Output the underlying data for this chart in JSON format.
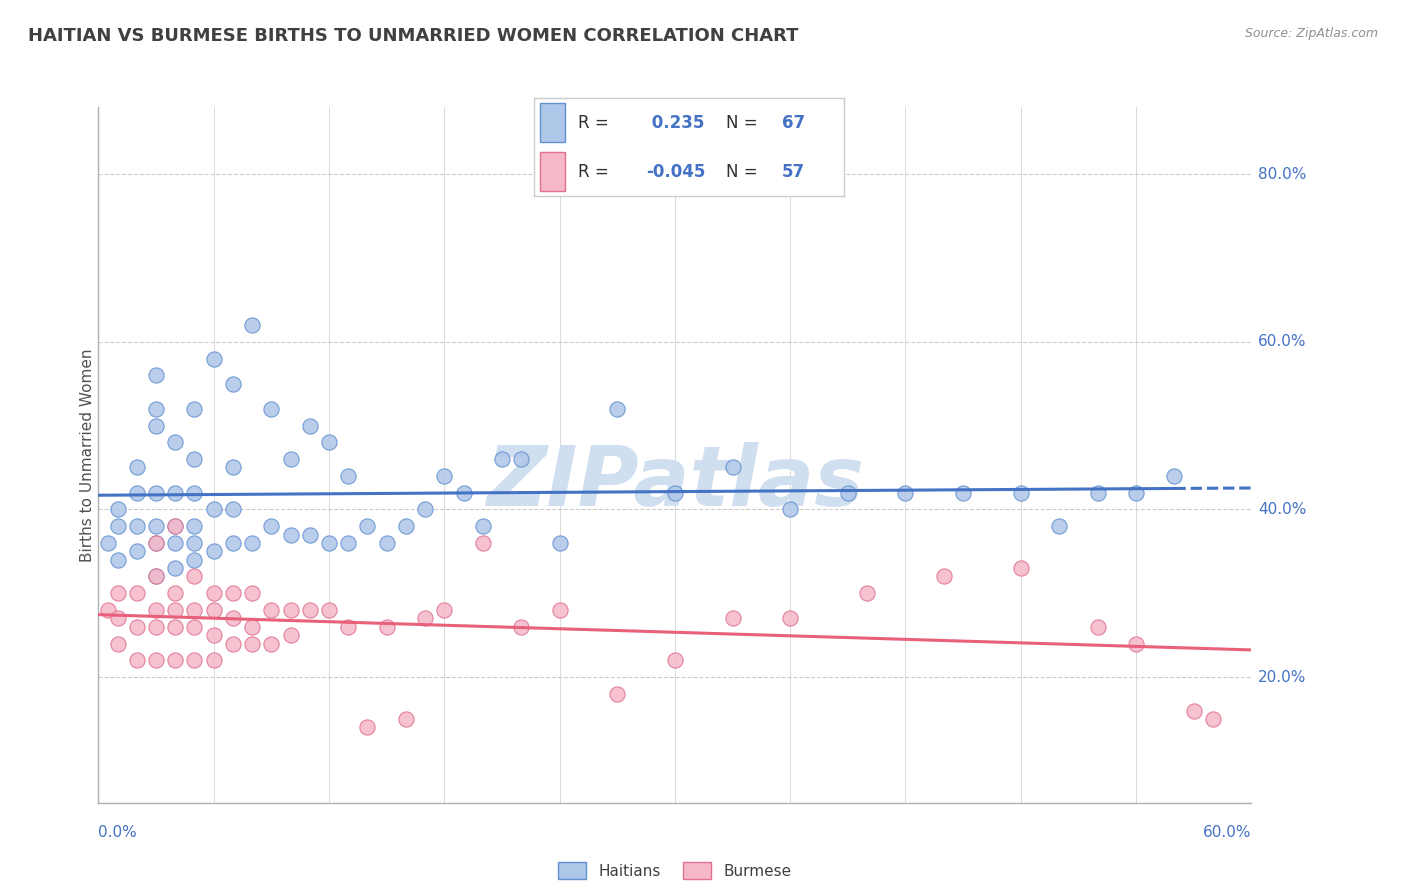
{
  "title": "HAITIAN VS BURMESE BIRTHS TO UNMARRIED WOMEN CORRELATION CHART",
  "source": "Source: ZipAtlas.com",
  "ylabel": "Births to Unmarried Women",
  "yticks": [
    0.2,
    0.4,
    0.6,
    0.8
  ],
  "ytick_labels": [
    "20.0%",
    "40.0%",
    "60.0%",
    "80.0%"
  ],
  "xlim": [
    0.0,
    0.6
  ],
  "ylim": [
    0.05,
    0.88
  ],
  "blue_R": 0.235,
  "blue_N": 67,
  "pink_R": -0.045,
  "pink_N": 57,
  "blue_color": "#aec6e8",
  "pink_color": "#f5b8c8",
  "blue_edge_color": "#6090d0",
  "pink_edge_color": "#e07090",
  "blue_line_color": "#4472c4",
  "pink_line_color": "#e8607a",
  "title_color": "#404040",
  "source_color": "#909090",
  "tick_label_color": "#4472c4",
  "watermark": "ZIPatlas",
  "watermark_color": "#d0dff0",
  "grid_color": "#cccccc",
  "legend_box_color": "#cccccc",
  "blue_scatter_x": [
    0.005,
    0.01,
    0.01,
    0.01,
    0.02,
    0.02,
    0.02,
    0.02,
    0.03,
    0.03,
    0.03,
    0.03,
    0.03,
    0.03,
    0.03,
    0.04,
    0.04,
    0.04,
    0.04,
    0.04,
    0.05,
    0.05,
    0.05,
    0.05,
    0.05,
    0.05,
    0.06,
    0.06,
    0.06,
    0.07,
    0.07,
    0.07,
    0.07,
    0.08,
    0.08,
    0.09,
    0.09,
    0.1,
    0.1,
    0.11,
    0.11,
    0.12,
    0.12,
    0.13,
    0.13,
    0.14,
    0.15,
    0.16,
    0.17,
    0.18,
    0.19,
    0.2,
    0.21,
    0.22,
    0.24,
    0.27,
    0.3,
    0.33,
    0.36,
    0.39,
    0.42,
    0.45,
    0.48,
    0.5,
    0.52,
    0.54,
    0.56
  ],
  "blue_scatter_y": [
    0.36,
    0.34,
    0.38,
    0.4,
    0.35,
    0.38,
    0.42,
    0.45,
    0.32,
    0.36,
    0.38,
    0.42,
    0.5,
    0.52,
    0.56,
    0.33,
    0.36,
    0.38,
    0.42,
    0.48,
    0.34,
    0.36,
    0.38,
    0.42,
    0.46,
    0.52,
    0.35,
    0.4,
    0.58,
    0.36,
    0.4,
    0.45,
    0.55,
    0.36,
    0.62,
    0.38,
    0.52,
    0.37,
    0.46,
    0.37,
    0.5,
    0.36,
    0.48,
    0.36,
    0.44,
    0.38,
    0.36,
    0.38,
    0.4,
    0.44,
    0.42,
    0.38,
    0.46,
    0.46,
    0.36,
    0.52,
    0.42,
    0.45,
    0.4,
    0.42,
    0.42,
    0.42,
    0.42,
    0.38,
    0.42,
    0.42,
    0.44
  ],
  "pink_scatter_x": [
    0.005,
    0.01,
    0.01,
    0.01,
    0.02,
    0.02,
    0.02,
    0.03,
    0.03,
    0.03,
    0.03,
    0.03,
    0.04,
    0.04,
    0.04,
    0.04,
    0.04,
    0.05,
    0.05,
    0.05,
    0.05,
    0.06,
    0.06,
    0.06,
    0.06,
    0.07,
    0.07,
    0.07,
    0.08,
    0.08,
    0.08,
    0.09,
    0.09,
    0.1,
    0.1,
    0.11,
    0.12,
    0.13,
    0.14,
    0.15,
    0.16,
    0.17,
    0.18,
    0.2,
    0.22,
    0.24,
    0.27,
    0.3,
    0.33,
    0.36,
    0.4,
    0.44,
    0.48,
    0.52,
    0.54,
    0.57,
    0.58
  ],
  "pink_scatter_y": [
    0.28,
    0.24,
    0.27,
    0.3,
    0.22,
    0.26,
    0.3,
    0.22,
    0.26,
    0.28,
    0.32,
    0.36,
    0.22,
    0.26,
    0.28,
    0.3,
    0.38,
    0.22,
    0.26,
    0.28,
    0.32,
    0.22,
    0.25,
    0.28,
    0.3,
    0.24,
    0.27,
    0.3,
    0.24,
    0.26,
    0.3,
    0.24,
    0.28,
    0.25,
    0.28,
    0.28,
    0.28,
    0.26,
    0.14,
    0.26,
    0.15,
    0.27,
    0.28,
    0.36,
    0.26,
    0.28,
    0.18,
    0.22,
    0.27,
    0.27,
    0.3,
    0.32,
    0.33,
    0.26,
    0.24,
    0.16,
    0.15
  ]
}
